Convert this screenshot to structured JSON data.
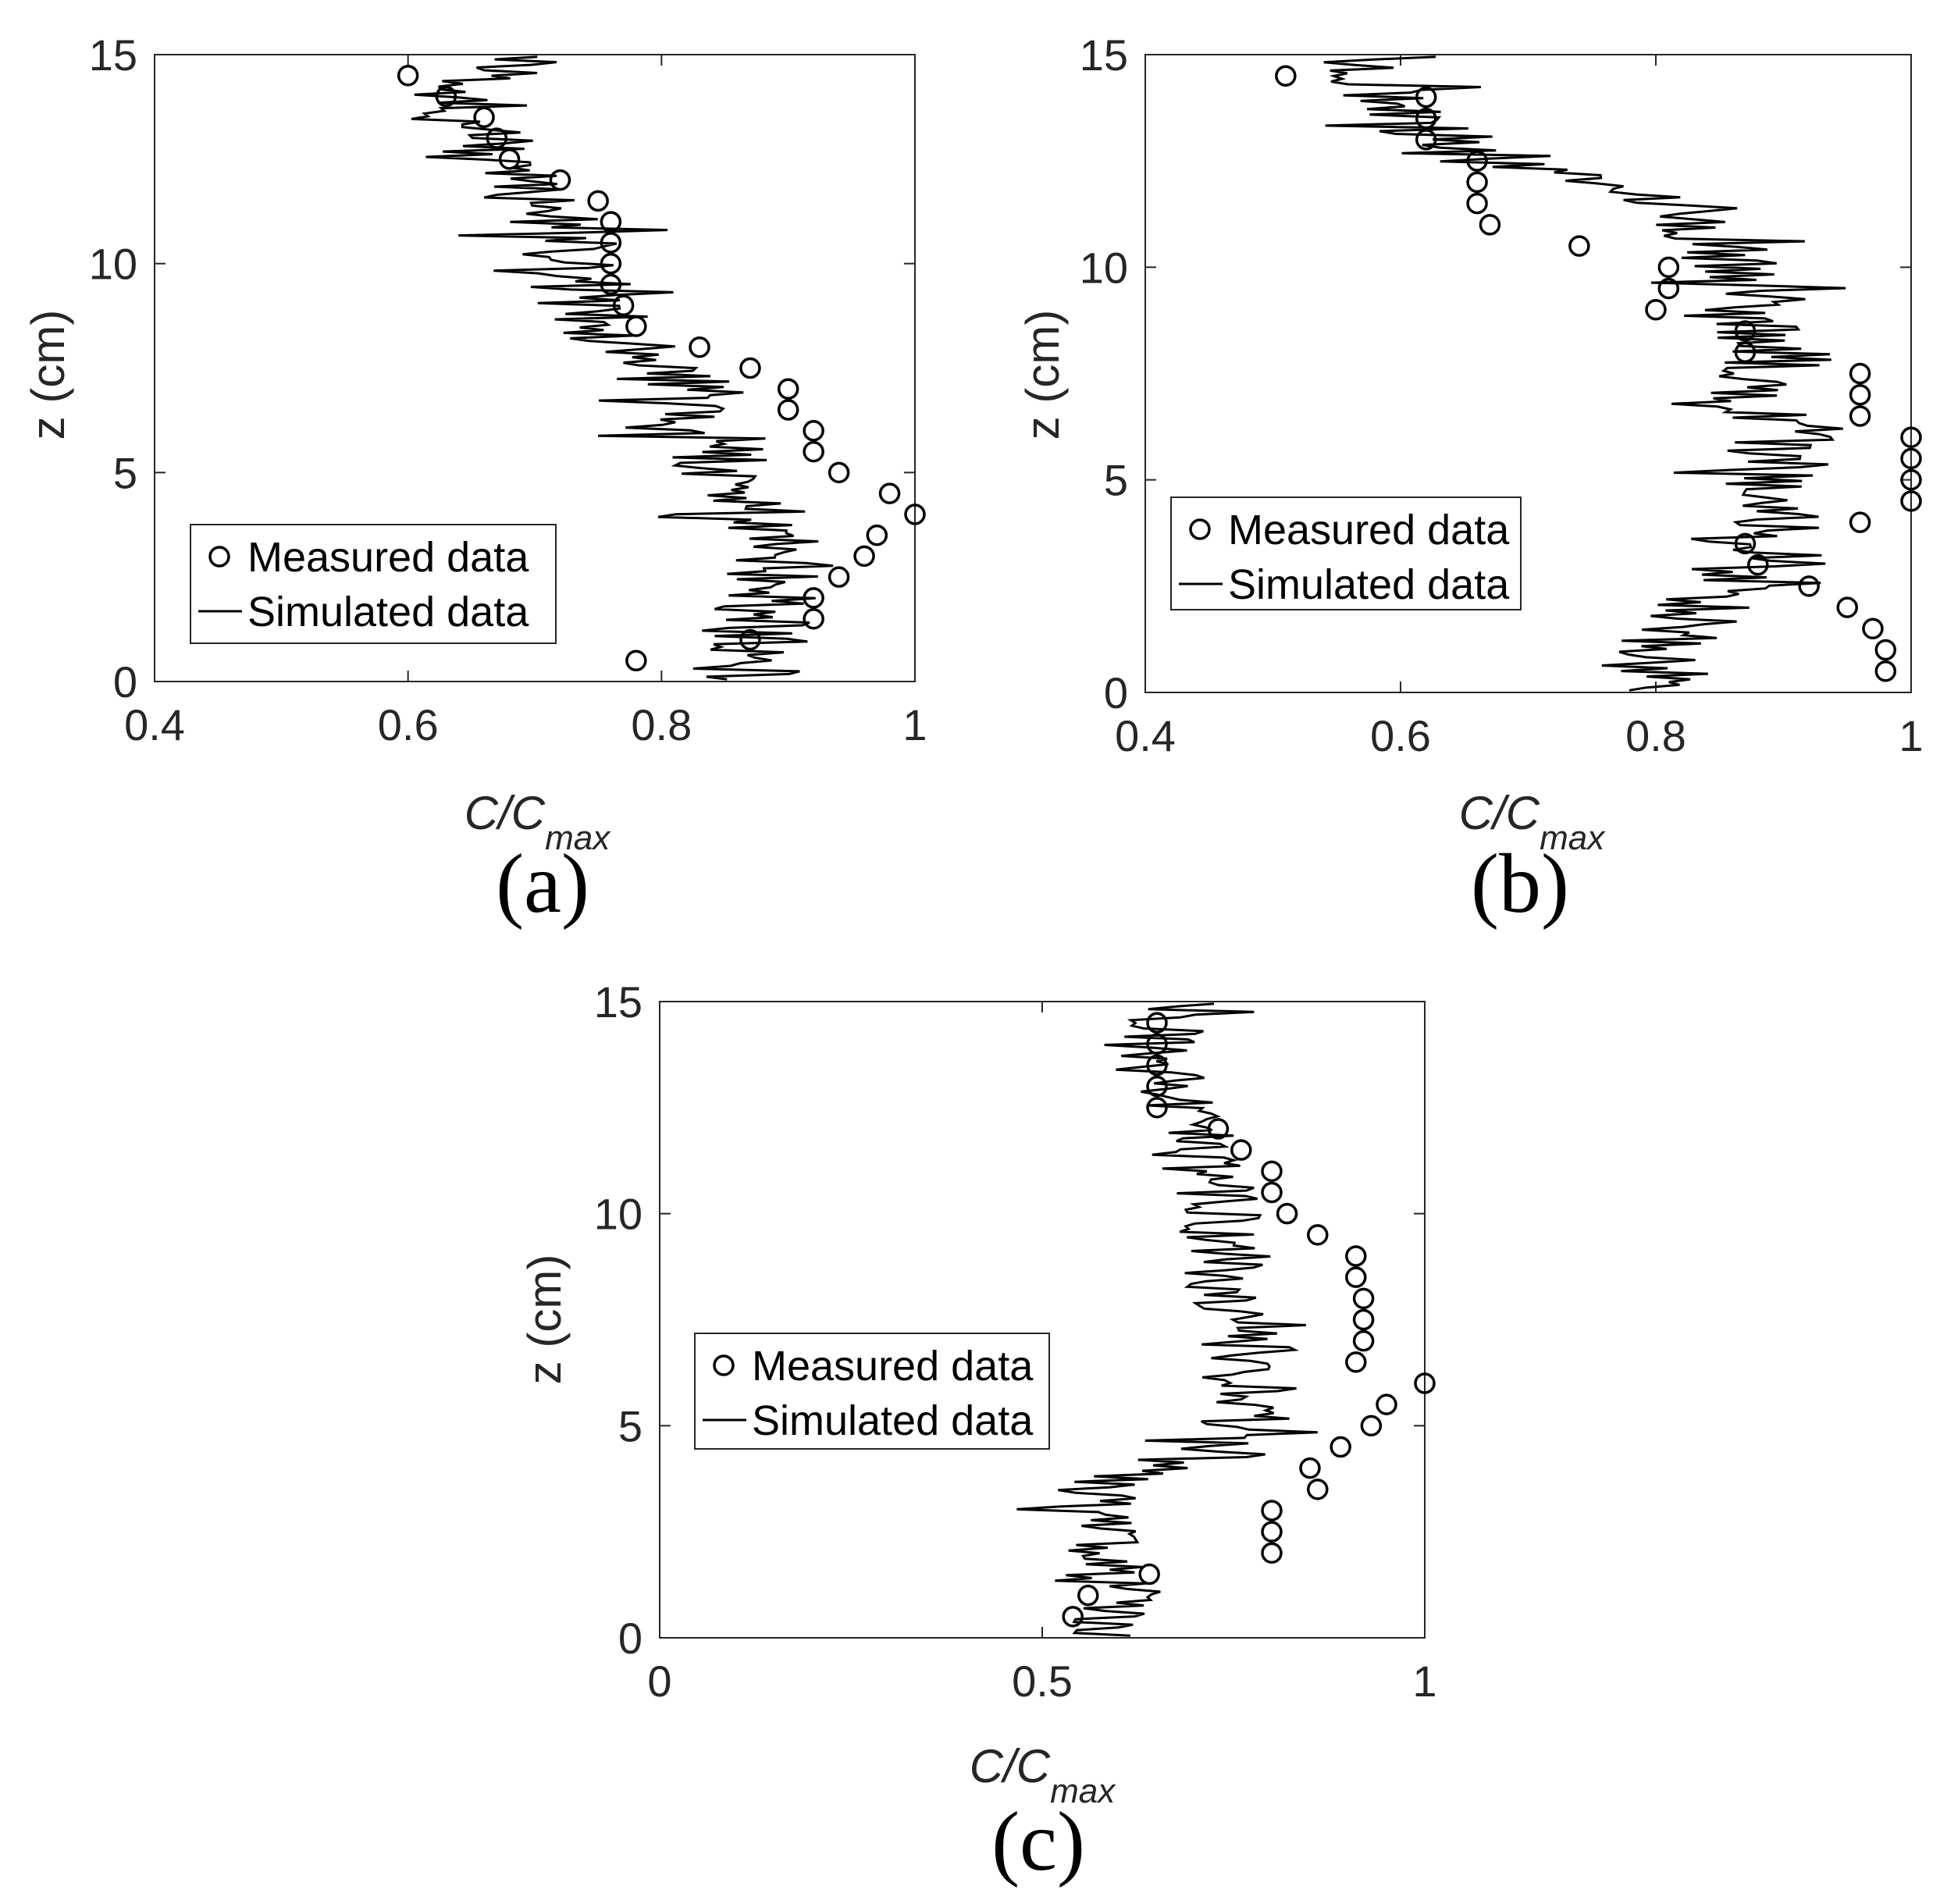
{
  "legend_labels": {
    "measured": "Measured data",
    "simulated": "Simulated data"
  },
  "colors": {
    "line": "#000000",
    "axis": "#262626",
    "box": "#c8c8c8"
  },
  "chart_data": [
    {
      "type": "scatter",
      "panel_label": "(a)",
      "xlabel": "C/C",
      "xlabel_sub": "max",
      "ylabel": "z (cm)",
      "xlim": [
        0.4,
        1
      ],
      "ylim": [
        0,
        15
      ],
      "xticks": [
        0.4,
        0.6,
        0.8,
        1
      ],
      "xtick_labels": [
        "0.4",
        "0.6",
        "0.8",
        "1"
      ],
      "yticks": [
        0,
        5,
        10,
        15
      ],
      "ytick_labels": [
        "0",
        "5",
        "10",
        "15"
      ],
      "legend_position": "lower-left",
      "series": [
        {
          "name": "Measured data",
          "kind": "markers",
          "x": [
            0.78,
            0.87,
            0.92,
            0.92,
            0.94,
            0.96,
            0.97,
            1.0,
            0.98,
            0.94,
            0.92,
            0.92,
            0.9,
            0.9,
            0.87,
            0.83,
            0.78,
            0.77,
            0.76,
            0.76,
            0.76,
            0.76,
            0.75,
            0.72,
            0.68,
            0.67,
            0.66,
            0.63,
            0.6
          ],
          "y": [
            0.5,
            1.0,
            1.5,
            2.0,
            2.5,
            3.0,
            3.5,
            4.0,
            4.5,
            5.0,
            5.5,
            6.0,
            6.5,
            7.0,
            7.5,
            8.0,
            8.5,
            9.0,
            9.5,
            10.0,
            10.5,
            11.0,
            11.5,
            12.0,
            12.5,
            13.0,
            13.5,
            14.0,
            14.5
          ]
        },
        {
          "name": "Simulated data",
          "kind": "line",
          "seed": 11,
          "profile_z": [
            0,
            1,
            2,
            3,
            4,
            5,
            6,
            7,
            7.5,
            8,
            9,
            10,
            11,
            12,
            13,
            14,
            15
          ],
          "profile_c": [
            0.87,
            0.88,
            0.88,
            0.9,
            0.88,
            0.85,
            0.83,
            0.83,
            0.79,
            0.77,
            0.74,
            0.73,
            0.72,
            0.68,
            0.66,
            0.65,
            0.69
          ],
          "amplitude": 0.07
        }
      ]
    },
    {
      "type": "scatter",
      "panel_label": "(b)",
      "xlabel": "C/C",
      "xlabel_sub": "max",
      "ylabel": "z (cm)",
      "xlim": [
        0.4,
        1
      ],
      "ylim": [
        0,
        15
      ],
      "xticks": [
        0.4,
        0.6,
        0.8,
        1
      ],
      "xtick_labels": [
        "0.4",
        "0.6",
        "0.8",
        "1"
      ],
      "yticks": [
        0,
        5,
        10,
        15
      ],
      "ytick_labels": [
        "0",
        "5",
        "10",
        "15"
      ],
      "legend_position": "middle-left",
      "series": [
        {
          "name": "Measured data",
          "kind": "markers",
          "x": [
            0.98,
            0.98,
            0.97,
            0.95,
            0.92,
            0.88,
            0.87,
            0.96,
            1.0,
            1.0,
            1.0,
            1.0,
            0.96,
            0.96,
            0.96,
            0.87,
            0.87,
            0.8,
            0.81,
            0.81,
            0.74,
            0.67,
            0.66,
            0.66,
            0.66,
            0.62,
            0.62,
            0.62,
            0.51
          ],
          "y": [
            0.5,
            1.0,
            1.5,
            2.0,
            2.5,
            3.0,
            3.5,
            4.0,
            4.5,
            5.0,
            5.5,
            6.0,
            6.5,
            7.0,
            7.5,
            8.0,
            8.5,
            9.0,
            9.5,
            10.0,
            10.5,
            11.0,
            11.5,
            12.0,
            12.5,
            13.0,
            13.5,
            14.0,
            14.5
          ]
        },
        {
          "name": "Simulated data",
          "kind": "line",
          "seed": 23,
          "profile_z": [
            0,
            1,
            2,
            3,
            4,
            5,
            6,
            7,
            8,
            9,
            10,
            11,
            12,
            13,
            14,
            15
          ],
          "profile_c": [
            0.79,
            0.8,
            0.84,
            0.86,
            0.87,
            0.89,
            0.9,
            0.88,
            0.9,
            0.87,
            0.86,
            0.84,
            0.75,
            0.64,
            0.59,
            0.55
          ],
          "amplitude": 0.07
        }
      ]
    },
    {
      "type": "scatter",
      "panel_label": "(c)",
      "xlabel": "C/C",
      "xlabel_sub": "max",
      "ylabel": "z (cm)",
      "xlim": [
        0,
        1
      ],
      "ylim": [
        0,
        15
      ],
      "xticks": [
        0,
        0.5,
        1
      ],
      "xtick_labels": [
        "0",
        "0.5",
        "1"
      ],
      "yticks": [
        0,
        5,
        10,
        15
      ],
      "ytick_labels": [
        "0",
        "5",
        "10",
        "15"
      ],
      "legend_position": "middle-left",
      "series": [
        {
          "name": "Measured data",
          "kind": "markers",
          "x": [
            0.54,
            0.56,
            0.64,
            0.8,
            0.8,
            0.8,
            0.86,
            0.85,
            0.89,
            0.93,
            0.95,
            1.0,
            0.91,
            0.92,
            0.92,
            0.92,
            0.91,
            0.91,
            0.86,
            0.82,
            0.8,
            0.8,
            0.76,
            0.73,
            0.65,
            0.65,
            0.65,
            0.65,
            0.65
          ],
          "y": [
            0.5,
            1.0,
            1.5,
            2.0,
            2.5,
            3.0,
            3.5,
            4.0,
            4.5,
            5.0,
            5.5,
            6.0,
            6.5,
            7.0,
            7.5,
            8.0,
            8.5,
            9.0,
            9.5,
            10.0,
            10.5,
            11.0,
            11.5,
            12.0,
            12.5,
            13.0,
            13.5,
            14.0,
            14.5
          ]
        },
        {
          "name": "Simulated data",
          "kind": "line",
          "seed": 37,
          "profile_z": [
            0,
            1,
            2,
            3,
            3.8,
            4.2,
            5,
            6,
            7,
            8,
            9,
            10,
            11,
            12,
            13,
            14,
            15
          ],
          "profile_c": [
            0.6,
            0.58,
            0.57,
            0.57,
            0.58,
            0.73,
            0.76,
            0.78,
            0.77,
            0.75,
            0.74,
            0.73,
            0.71,
            0.69,
            0.66,
            0.64,
            0.7
          ],
          "amplitude": 0.1
        }
      ]
    }
  ]
}
